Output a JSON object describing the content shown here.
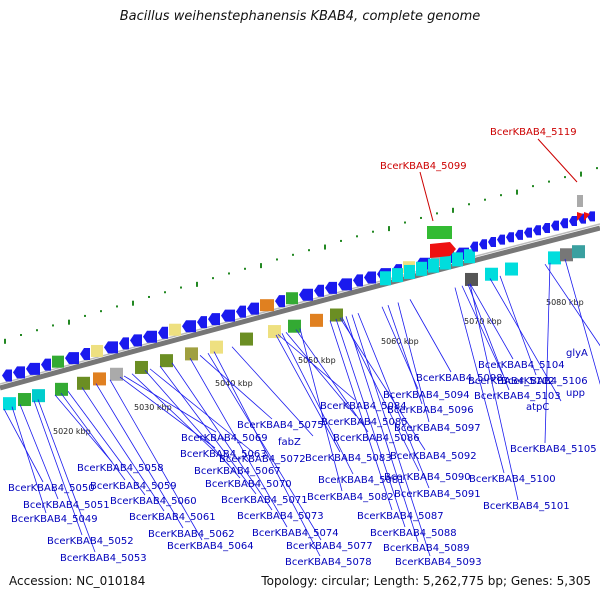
{
  "title": "Bacillus weihenstephanensis KBAB4, complete genome",
  "footer": {
    "accession": "Accession: NC_010184",
    "summary": "Topology: circular; Length: 5,262,775 bp; Genes: 5,305"
  },
  "kbp_labels": [
    "5020 kbp",
    "5030 kbp",
    "5040 kbp",
    "5050 kbp",
    "5060 kbp",
    "5070 kbp",
    "5080 kbp"
  ],
  "highlighted_genes": [
    {
      "label": "BcerKBAB4_5099",
      "color": "#cc0000"
    },
    {
      "label": "BcerKBAB4_5119",
      "color": "#cc0000"
    }
  ],
  "gene_labels": [
    "BcerKBAB4_5050",
    "BcerKBAB4_5051",
    "BcerKBAB4_5049",
    "BcerKBAB4_5052",
    "BcerKBAB4_5053",
    "BcerKBAB4_5058",
    "BcerKBAB4_5059",
    "BcerKBAB4_5060",
    "BcerKBAB4_5061",
    "BcerKBAB4_5062",
    "BcerKBAB4_5064",
    "BcerKBAB4_5063",
    "BcerKBAB4_5069",
    "BcerKBAB4_5067",
    "BcerKBAB4_5072",
    "BcerKBAB4_5070",
    "BcerKBAB4_5071",
    "BcerKBAB4_5073",
    "BcerKBAB4_5074",
    "BcerKBAB4_5077",
    "BcerKBAB4_5078",
    "BcerKBAB4_5075",
    "fabZ",
    "BcerKBAB4_5084",
    "BcerKBAB4_5085",
    "BcerKBAB4_5086",
    "BcerKBAB4_5083",
    "BcerKBAB4_5081",
    "BcerKBAB4_5082",
    "BcerKBAB4_5087",
    "BcerKBAB4_5088",
    "BcerKBAB4_5089",
    "BcerKBAB4_5093",
    "BcerKBAB4_5090",
    "BcerKBAB4_5091",
    "BcerKBAB4_5092",
    "BcerKBAB4_5098",
    "BcerKBAB4_5094",
    "BcerKBAB4_5096",
    "BcerKBAB4_5097",
    "BcerKBAB4_5104",
    "BcerKBAB4_5102",
    "BcerKBAB4_5103",
    "atpC",
    "BcerKBAB4_5106",
    "glyA",
    "upp",
    "BcerKBAB4_5105",
    "BcerKBAB4_5100",
    "BcerKBAB4_5101"
  ],
  "colors": {
    "backbone": "#888888",
    "reverse_strand_arrow": "#1a1aee",
    "forward_strand_gene": "#00dddd",
    "highlight_forward": "#33bb33",
    "highlight_reverse": "#ee1111",
    "tick_green": "#228822",
    "label_line": "#1a1aee"
  }
}
